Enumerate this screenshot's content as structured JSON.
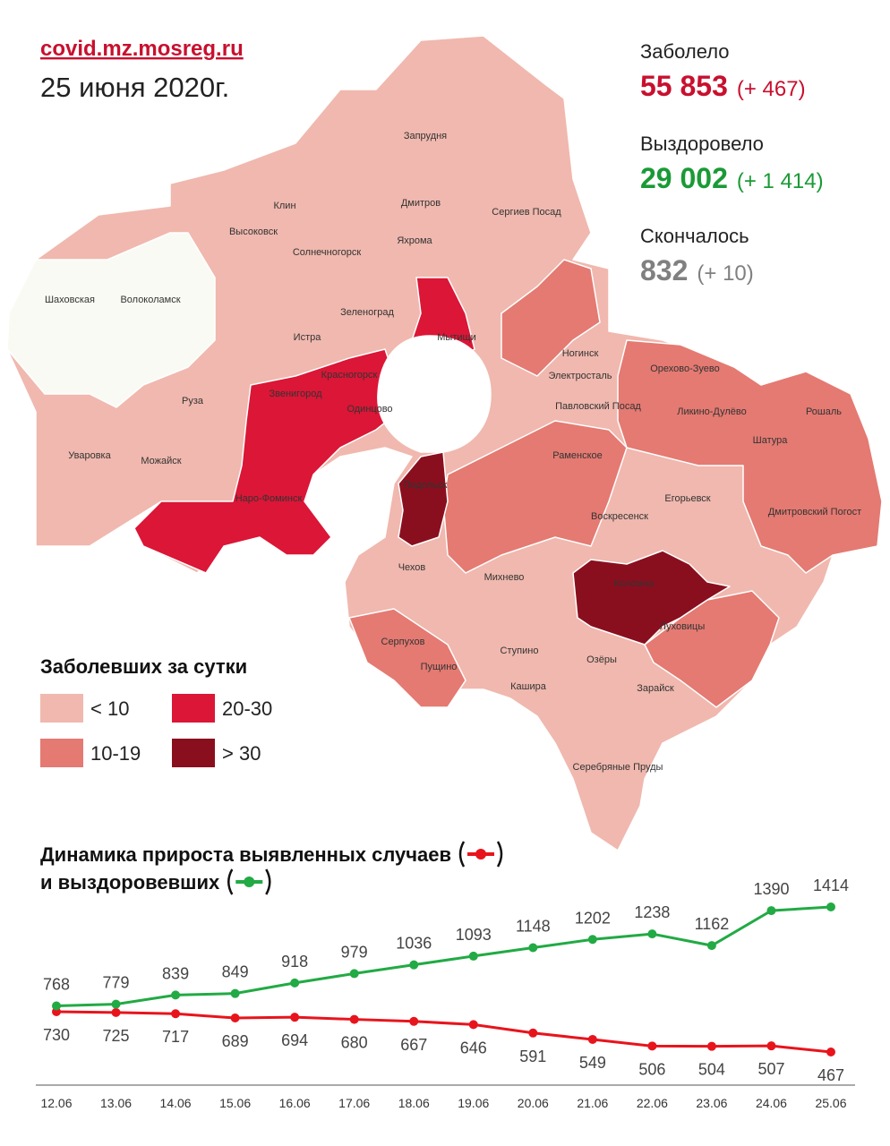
{
  "header": {
    "site": "covid.mz.mosreg.ru",
    "date": "25 июня 2020г."
  },
  "stats": [
    {
      "label": "Заболело",
      "value": "55 853",
      "delta": "(+ 467)",
      "color": "#c8102e"
    },
    {
      "label": "Выздоровело",
      "value": "29 002",
      "delta": "(+ 1 414)",
      "color": "#1a9a36"
    },
    {
      "label": "Скончалось",
      "value": "832",
      "delta": "(+ 10)",
      "color": "#808080"
    }
  ],
  "map": {
    "places": [
      "Запрудня",
      "Клин",
      "Дмитров",
      "Сергиев Посад",
      "Высоковск",
      "Яхрома",
      "Солнечногорск",
      "Шаховская",
      "Волоколамск",
      "Зеленоград",
      "Мытищи",
      "Истра",
      "Ногинск",
      "Красногорск",
      "Электросталь",
      "Орехово-Зуево",
      "Звенигород",
      "Одинцово",
      "Павловский Посад",
      "Ликино-Дулёво",
      "Рошаль",
      "Руза",
      "Шатура",
      "Раменское",
      "Уваровка",
      "Можайск",
      "Подольск",
      "Наро-Фоминск",
      "Егорьевск",
      "Воскресенск",
      "Дмитровский Погост",
      "Чехов",
      "Михнево",
      "Коломна",
      "Луховицы",
      "Серпухов",
      "Ступино",
      "Пущино",
      "Озёры",
      "Кашира",
      "Зарайск",
      "Серебряные Пруды"
    ],
    "legend": {
      "title": "Заболевших за сутки",
      "items": [
        {
          "label": "< 10",
          "color": "#f0b8ae"
        },
        {
          "label": "10-19",
          "color": "#e47a72"
        },
        {
          "label": "20-30",
          "color": "#db1636"
        },
        {
          "label": "> 30",
          "color": "#8a0f1e"
        }
      ]
    }
  },
  "chart_data": {
    "type": "line",
    "title": [
      "Динамика прироста выявленных случаев",
      "и выздоровевших"
    ],
    "categories": [
      "12.06",
      "13.06",
      "14.06",
      "15.06",
      "16.06",
      "17.06",
      "18.06",
      "19.06",
      "20.06",
      "21.06",
      "22.06",
      "23.06",
      "24.06",
      "25.06"
    ],
    "series": [
      {
        "color": "#e8141c",
        "values": [
          730,
          725,
          717,
          689,
          694,
          680,
          667,
          646,
          591,
          549,
          506,
          504,
          507,
          467
        ]
      },
      {
        "color": "#22aa44",
        "values": [
          768,
          779,
          839,
          849,
          918,
          979,
          1036,
          1093,
          1148,
          1202,
          1238,
          1162,
          1390,
          1414
        ]
      }
    ]
  }
}
